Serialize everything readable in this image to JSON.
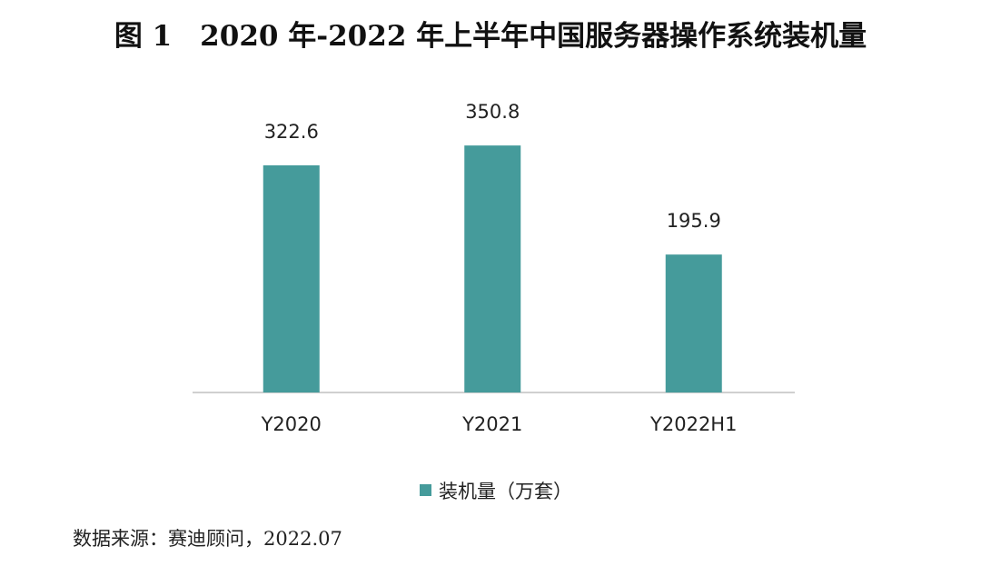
{
  "chart_data": {
    "type": "bar",
    "title": "图 1　2020 年-2022 年上半年中国服务器操作系统装机量",
    "categories": [
      "Y2020",
      "Y2021",
      "Y2022H1"
    ],
    "series": [
      {
        "name": "装机量（万套）",
        "color": "#459b9b",
        "values": [
          322.6,
          350.8,
          195.9
        ]
      }
    ],
    "source": "数据来源：赛迪顾问，2022.07"
  }
}
